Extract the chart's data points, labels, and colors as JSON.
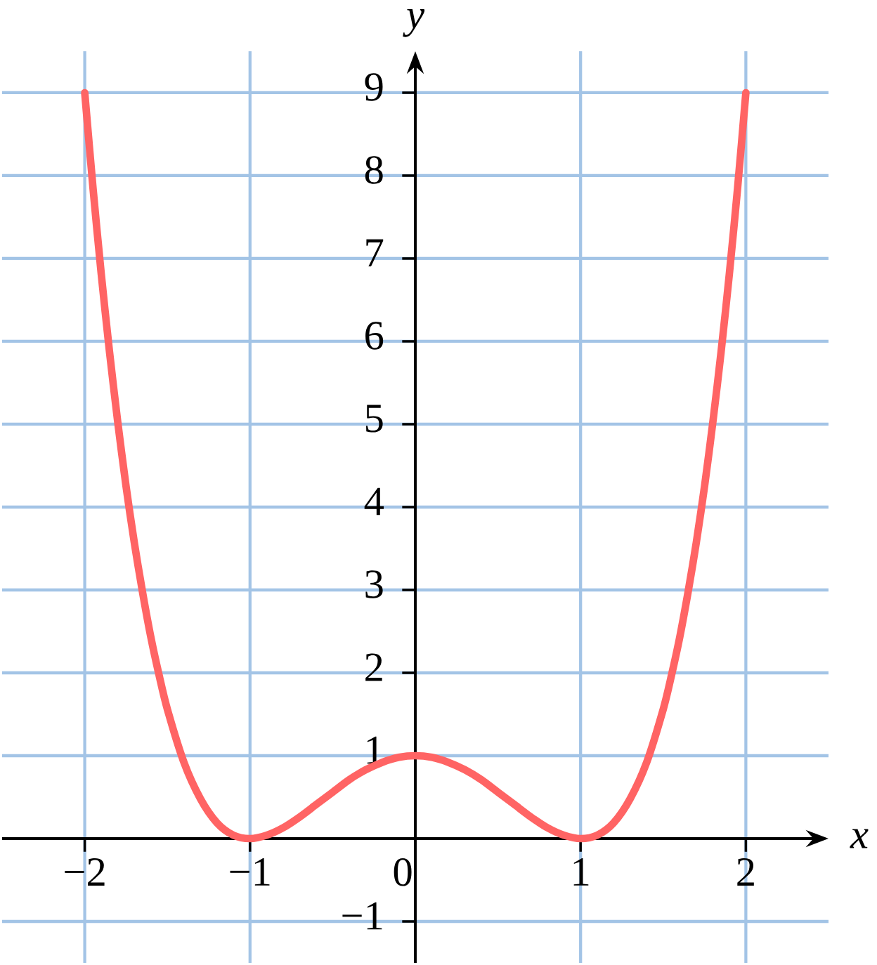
{
  "chart_data": {
    "type": "line",
    "xlabel": "x",
    "ylabel": "y",
    "x": [
      -2,
      -1.95,
      -1.9,
      -1.85,
      -1.8,
      -1.75,
      -1.7,
      -1.65,
      -1.6,
      -1.55,
      -1.5,
      -1.4,
      -1.3,
      -1.2,
      -1.1,
      -1,
      -0.9,
      -0.8,
      -0.7,
      -0.6,
      -0.5,
      -0.4,
      -0.3,
      -0.2,
      -0.1,
      0,
      0.1,
      0.2,
      0.3,
      0.4,
      0.5,
      0.6,
      0.7,
      0.8,
      0.9,
      1,
      1.1,
      1.2,
      1.3,
      1.4,
      1.5,
      1.55,
      1.6,
      1.65,
      1.7,
      1.75,
      1.8,
      1.85,
      1.9,
      1.95,
      2
    ],
    "series": [
      {
        "color": "#ff6464",
        "values": [
          9,
          7.85,
          6.81,
          5.87,
          5.02,
          4.25,
          3.57,
          2.97,
          2.43,
          1.97,
          1.56,
          0.92,
          0.48,
          0.19,
          0.04,
          0,
          0.04,
          0.13,
          0.26,
          0.41,
          0.56,
          0.71,
          0.83,
          0.92,
          0.98,
          1,
          0.98,
          0.92,
          0.83,
          0.71,
          0.56,
          0.41,
          0.26,
          0.13,
          0.04,
          0,
          0.04,
          0.19,
          0.48,
          0.92,
          1.56,
          1.97,
          2.43,
          2.97,
          3.57,
          4.25,
          5.02,
          5.87,
          6.81,
          7.85,
          9
        ]
      }
    ],
    "xlim": [
      -2.5,
      2.5
    ],
    "ylim": [
      -1.5,
      9.5
    ],
    "xticks": [
      {
        "value": -2,
        "label": "−2"
      },
      {
        "value": -1,
        "label": "−1"
      },
      {
        "value": 0,
        "label": "0"
      },
      1,
      2
    ],
    "yticks": [
      {
        "value": -1,
        "label": "−1"
      },
      1,
      2,
      3,
      4,
      5,
      6,
      7,
      8,
      9
    ],
    "grid": true
  }
}
